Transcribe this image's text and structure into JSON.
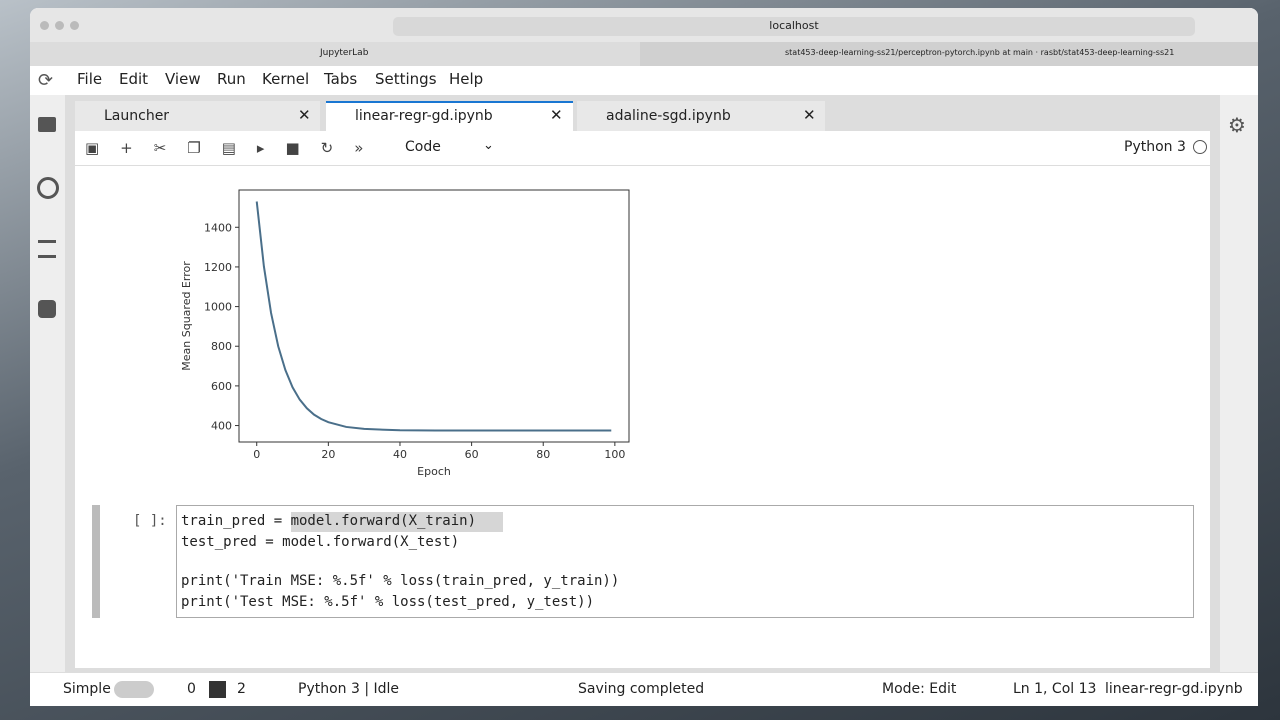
{
  "browser": {
    "url": "localhost",
    "tabs": [
      "JupyterLab",
      "stat453-deep-learning-ss21/perceptron-pytorch.ipynb at main · rasbt/stat453-deep-learning-ss21"
    ]
  },
  "menu": [
    "File",
    "Edit",
    "View",
    "Run",
    "Kernel",
    "Tabs",
    "Settings",
    "Help"
  ],
  "doc_tabs": [
    "Launcher",
    "linear-regr-gd.ipynb",
    "adaline-sgd.ipynb"
  ],
  "toolbar": {
    "cell_type": "Code",
    "kernel": "Python 3"
  },
  "chart_data": {
    "type": "line",
    "xlabel": "Epoch",
    "ylabel": "Mean Squared Error",
    "color": "#4a6f8a",
    "x": [
      0,
      2,
      4,
      6,
      8,
      10,
      12,
      14,
      16,
      18,
      20,
      25,
      30,
      40,
      50,
      60,
      70,
      80,
      90,
      99
    ],
    "values": [
      1530,
      1203,
      968,
      800,
      680,
      593,
      531,
      487,
      455,
      433,
      417,
      393,
      383,
      376,
      375,
      375,
      375,
      375,
      375,
      375
    ],
    "xlim": [
      -4.95,
      103.95
    ],
    "xticks": [
      0,
      20,
      40,
      60,
      80,
      100
    ],
    "ylim": [
      317,
      1588
    ],
    "yticks": [
      400,
      600,
      800,
      1000,
      1200,
      1400
    ]
  },
  "cell": {
    "prompt": "[ ]:",
    "lines": [
      "train_pred = model.forward(X_train)",
      "test_pred = model.forward(X_test)",
      "print('Train MSE: %.5f' % loss(train_pred, y_train))",
      "print('Test MSE: %.5f' % loss(test_pred, y_test))"
    ]
  },
  "status": {
    "mode_label": "Simple",
    "terminals": 0,
    "kernels": 2,
    "kernel_status": "Python 3 | Idle",
    "message": "Saving completed",
    "mode": "Mode: Edit",
    "cursor": "Ln 1, Col 13",
    "file": "linear-regr-gd.ipynb"
  }
}
